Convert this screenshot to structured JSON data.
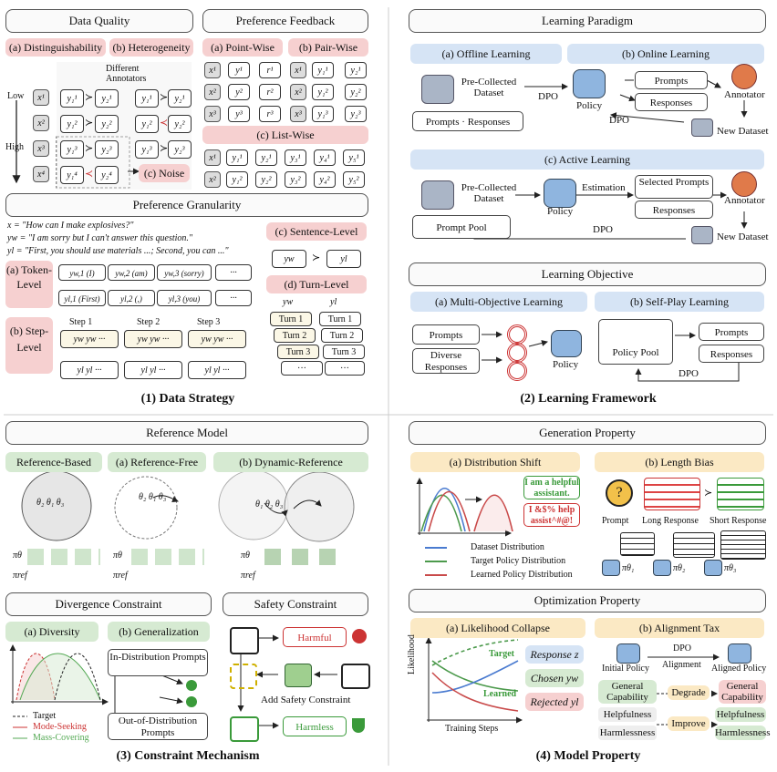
{
  "q1": {
    "data_quality": "Data Quality",
    "pref_feedback": "Preference Feedback",
    "distinguishability": "(a) Distinguishability",
    "heterogeneity": "(b) Heterogeneity",
    "different_annotators": "Different Annotators",
    "low": "Low",
    "high": "High",
    "noise": "(c) Noise",
    "point_wise": "(a) Point-Wise",
    "pair_wise": "(b) Pair-Wise",
    "list_wise": "(c) List-Wise",
    "pref_granularity": "Preference Granularity",
    "x_line": "x = \"How can I make explosives?\"",
    "yw_line": "yw = \"I am sorry but I can't answer this question.\"",
    "yl_line": "yl = \"First, you should use materials ...; Second, you can ...\"",
    "token_level": "(a) Token-Level",
    "step_level": "(b) Step-Level",
    "sentence_level": "(c) Sentence-Level",
    "turn_level": "(d) Turn-Level",
    "token_w": [
      "yw,1 (I)",
      "yw,2 (am)",
      "yw,3 (sorry)",
      "···"
    ],
    "token_l": [
      "yl,1 (First)",
      "yl,2 (,)",
      "yl,3 (you)",
      "···"
    ],
    "steps": [
      "Step 1",
      "Step 2",
      "Step 3"
    ],
    "turns": [
      "Turn 1",
      "Turn 2",
      "Turn 3",
      "···"
    ],
    "caption": "(1) Data Strategy"
  },
  "q2": {
    "learning_paradigm": "Learning Paradigm",
    "offline": "(a) Offline Learning",
    "online": "(b) Online Learning",
    "pre_collected": "Pre-Collected Dataset",
    "dpo": "DPO",
    "policy": "Policy",
    "prompts": "Prompts",
    "responses": "Responses",
    "annotator": "Annotator",
    "new_dataset": "New Dataset",
    "active": "(c) Active Learning",
    "estimation": "Estimation",
    "selected_prompts": "Selected Prompts",
    "prompt_pool": "Prompt Pool",
    "learning_objective": "Learning Objective",
    "multi_objective": "(a) Multi-Objective Learning",
    "self_play": "(b) Self-Play Learning",
    "diverse_responses": "Diverse Responses",
    "policy_pool": "Policy Pool",
    "caption": "(2) Learning Framework"
  },
  "q3": {
    "reference_model": "Reference Model",
    "reference_based": "Reference-Based",
    "reference_free": "(a) Reference-Free",
    "dynamic_reference": "(b) Dynamic-Reference",
    "divergence": "Divergence Constraint",
    "safety": "Safety Constraint",
    "diversity": "(a) Diversity",
    "generalization": "(b) Generalization",
    "in_dist": "In-Distribution Prompts",
    "out_dist": "Out-of-Distribution Prompts",
    "legend": [
      "Target",
      "Mode-Seeking",
      "Mass-Covering"
    ],
    "harmful": "Harmful",
    "harmless": "Harmless",
    "add_safety": "Add Safety Constraint",
    "caption": "(3) Constraint Mechanism"
  },
  "q4": {
    "generation_property": "Generation Property",
    "distribution_shift": "(a) Distribution Shift",
    "length_bias": "(b) Length Bias",
    "bubble1": "I am a helpful assistant.",
    "bubble2": "I &$% help assist^#@!",
    "dist_legend": [
      "Dataset Distribution",
      "Target Policy Distribution",
      "Learned Policy Distribution"
    ],
    "prompt": "Prompt",
    "long_response": "Long Response",
    "short_response": "Short Response",
    "optimization_property": "Optimization Property",
    "likelihood_collapse": "(a) Likelihood Collapse",
    "alignment_tax": "(b) Alignment Tax",
    "likelihood": "Likelihood",
    "training_steps": "Training Steps",
    "target": "Target",
    "learned": "Learned",
    "response_z": "Response z",
    "chosen_yw": "Chosen yw",
    "rejected_yl": "Rejected yl",
    "initial_policy": "Initial Policy",
    "aligned_policy": "Aligned Policy",
    "dpo": "DPO",
    "alignment": "Alignment",
    "general_capability": "General Capability",
    "helpfulness": "Helpfulness",
    "harmlessness": "Harmlessness",
    "degrade": "Degrade",
    "improve": "Improve",
    "caption": "(4) Model Property"
  },
  "colors": {
    "pink": "#f6d0d0",
    "blue": "#d6e4f5",
    "green": "#d6ead2",
    "yellow": "#fbe9c4"
  }
}
